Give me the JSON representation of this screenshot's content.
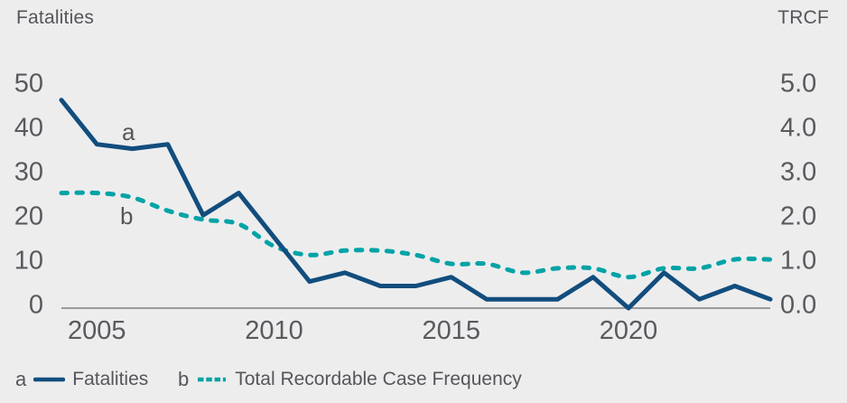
{
  "chart": {
    "left_axis": {
      "title": "Fatalities",
      "ticks": [
        "50",
        "40",
        "30",
        "20",
        "10",
        "0"
      ]
    },
    "right_axis": {
      "title": "TRCF",
      "ticks": [
        "5.0",
        "4.0",
        "3.0",
        "2.0",
        "1.0",
        "0.0"
      ]
    },
    "x_axis": {
      "labels": [
        "2005",
        "2010",
        "2015",
        "2020"
      ]
    },
    "series_markers": {
      "a": "a",
      "b": "b"
    },
    "legend": [
      {
        "key": "a",
        "label": "Fatalities",
        "style": "solid",
        "color": "#124D7D"
      },
      {
        "key": "b",
        "label": "Total Recordable Case Frequency",
        "style": "dashed",
        "color": "#00A3A6"
      }
    ],
    "colors": {
      "background": "#EDEDEE",
      "fatalities_line": "#124D7D",
      "trcf_line": "#00A3A6",
      "text": "#55565A",
      "axis_line": "#7C7E81"
    }
  },
  "chart_data": {
    "type": "line",
    "title": "",
    "x": [
      2004,
      2005,
      2006,
      2007,
      2008,
      2009,
      2010,
      2011,
      2012,
      2013,
      2014,
      2015,
      2016,
      2017,
      2018,
      2019,
      2020,
      2021,
      2022,
      2023,
      2024
    ],
    "series": [
      {
        "name": "Fatalities",
        "axis": "left",
        "style": "solid",
        "color": "#124D7D",
        "values": [
          47,
          37,
          36,
          37,
          21,
          26,
          16,
          6,
          8,
          5,
          5,
          7,
          2,
          2,
          2,
          7,
          0,
          8,
          2,
          5,
          2
        ]
      },
      {
        "name": "Total Recordable Case Frequency",
        "axis": "right",
        "style": "dashed",
        "color": "#00A3A6",
        "values": [
          2.6,
          2.6,
          2.5,
          2.2,
          2.0,
          1.9,
          1.4,
          1.2,
          1.3,
          1.3,
          1.2,
          1.0,
          1.0,
          0.8,
          0.9,
          0.9,
          0.7,
          0.9,
          0.9,
          1.1,
          1.1
        ]
      }
    ],
    "ylabel_left": "Fatalities",
    "ylabel_right": "TRCF",
    "left_ylim": [
      0,
      50
    ],
    "right_ylim": [
      0.0,
      5.0
    ],
    "xlabel": "",
    "x_tick_years": [
      2005,
      2010,
      2015,
      2020
    ],
    "grid": false,
    "legend_position": "bottom"
  }
}
